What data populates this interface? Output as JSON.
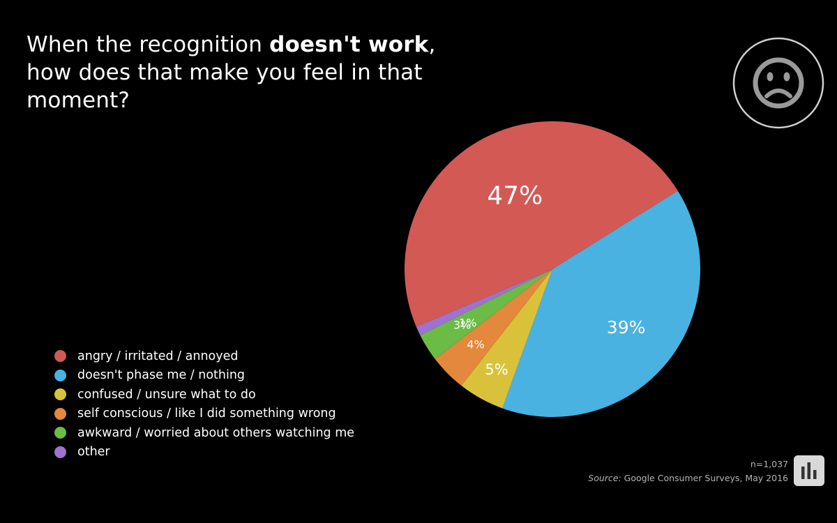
{
  "title": {
    "before": "When the recognition ",
    "bold": "doesn't work",
    "after": ", how does that make you feel in that moment?"
  },
  "badge": {
    "icon": "sad-face-icon"
  },
  "chart_data": {
    "type": "pie",
    "start_angle_deg": 32,
    "direction": "clockwise",
    "slices": [
      {
        "label": "doesn't phase me / nothing",
        "value": 39,
        "display": "39%",
        "color": "#4ab2e0"
      },
      {
        "label": "confused / unsure what to do",
        "value": 5,
        "display": "5%",
        "color": "#d9c23a"
      },
      {
        "label": "self conscious / like I did something wrong",
        "value": 4,
        "display": "4%",
        "color": "#e3883c"
      },
      {
        "label": "awkward / worried about others watching me",
        "value": 3,
        "display": "3%",
        "color": "#6bbb47"
      },
      {
        "label": "other",
        "value": 1,
        "display": "1%",
        "color": "#9d72d0"
      },
      {
        "label": "angry / irritated / annoyed",
        "value": 47,
        "display": "47%",
        "color": "#d35955"
      }
    ],
    "legend_order": [
      "angry / irritated / annoyed",
      "doesn't phase me / nothing",
      "confused / unsure what to do",
      "self conscious / like I did something wrong",
      "awkward / worried about others watching me",
      "other"
    ],
    "legend_placement": "bottom-left"
  },
  "footer": {
    "n": "n=1,037",
    "source_label": "Source:",
    "source_text": " Google Consumer Surveys, May 2016"
  },
  "logo": {
    "icon": "bar-chart-logo-icon"
  }
}
